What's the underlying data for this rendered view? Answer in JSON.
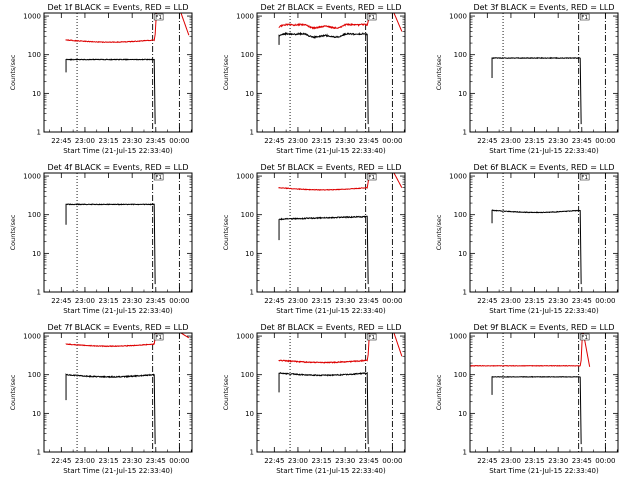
{
  "figure": {
    "ylabel": "Counts/sec",
    "xlabel": "Start Time (21-Jul-15 22:33:40)",
    "x_ticks": [
      "22:45",
      "23:00",
      "23:15",
      "23:30",
      "23:45",
      "00:00"
    ],
    "y_ticks": [
      "1",
      "10",
      "100",
      "1000"
    ]
  },
  "colors": {
    "events": "#000000",
    "lld": "#dd0000",
    "axes": "#000000"
  },
  "chart_data": [
    {
      "type": "line",
      "title": "Det 1f BLACK = Events, RED = LLD",
      "flag": "F1",
      "xlim_minutes": [
        0,
        94
      ],
      "ylim": [
        1,
        1200
      ],
      "yscale": "log",
      "markers_minutes": {
        "dotted": [
          21
        ],
        "dashdot": [
          69,
          86
        ]
      },
      "series": [
        {
          "role": "events",
          "start": 14,
          "end": 70,
          "pre_start": 35,
          "level": 75,
          "shape": "flat",
          "noise": 0.02,
          "exit": "drop",
          "exit_to": 1.6,
          "exit_span": 0.6
        },
        {
          "role": "lld",
          "start": 14,
          "end": 70,
          "pre_start": 250,
          "level": 240,
          "shape": "dip",
          "noise": 0.02,
          "exit": "spike",
          "exit_to": 1200,
          "after": {
            "from": 87,
            "to": 92,
            "start": 1200,
            "end": 320
          }
        }
      ]
    },
    {
      "type": "line",
      "title": "Det 2f BLACK = Events, RED = LLD",
      "flag": "F1",
      "xlim_minutes": [
        0,
        94
      ],
      "ylim": [
        1,
        1200
      ],
      "yscale": "log",
      "markers_minutes": {
        "dotted": [
          21
        ],
        "dashdot": [
          69,
          86
        ]
      },
      "series": [
        {
          "role": "events",
          "start": 14,
          "end": 70,
          "pre_start": 180,
          "level": 300,
          "shape": "bumps",
          "noise": 0.04,
          "exit": "drop",
          "exit_to": 1.6,
          "exit_span": 0.6
        },
        {
          "role": "lld",
          "start": 14,
          "end": 70,
          "pre_start": 500,
          "level": 520,
          "shape": "bumps",
          "noise": 0.04,
          "exit": "spike",
          "exit_to": 1200,
          "after": {
            "from": 87,
            "to": 92,
            "start": 1200,
            "end": 400
          }
        }
      ]
    },
    {
      "type": "line",
      "title": "Det 3f BLACK = Events, RED = LLD",
      "flag": "F1",
      "xlim_minutes": [
        0,
        94
      ],
      "ylim": [
        1,
        1200
      ],
      "yscale": "log",
      "markers_minutes": {
        "dotted": [
          21
        ],
        "dashdot": [
          69,
          86
        ]
      },
      "series": [
        {
          "role": "events",
          "start": 14,
          "end": 70,
          "pre_start": 25,
          "level": 82,
          "shape": "flat",
          "noise": 0.02,
          "exit": "drop",
          "exit_to": 1.6,
          "exit_span": 0.6
        }
      ]
    },
    {
      "type": "line",
      "title": "Det 4f BLACK = Events, RED = LLD",
      "flag": "F1",
      "xlim_minutes": [
        0,
        94
      ],
      "ylim": [
        1,
        1200
      ],
      "yscale": "log",
      "markers_minutes": {
        "dotted": [
          21
        ],
        "dashdot": [
          69,
          86
        ]
      },
      "series": [
        {
          "role": "events",
          "start": 14,
          "end": 70,
          "pre_start": 55,
          "level": 185,
          "shape": "flat",
          "noise": 0.02,
          "exit": "drop",
          "exit_to": 1.6,
          "exit_span": 0.6
        }
      ]
    },
    {
      "type": "line",
      "title": "Det 5f BLACK = Events, RED = LLD",
      "flag": "F1",
      "xlim_minutes": [
        0,
        94
      ],
      "ylim": [
        1,
        1200
      ],
      "yscale": "log",
      "markers_minutes": {
        "dotted": [
          21
        ],
        "dashdot": [
          69,
          86
        ]
      },
      "series": [
        {
          "role": "events",
          "start": 14,
          "end": 70,
          "pre_start": 22,
          "level": 85,
          "shape": "rise",
          "noise": 0.03,
          "exit": "drop",
          "exit_to": 1.6,
          "exit_span": 0.6
        },
        {
          "role": "lld",
          "start": 14,
          "end": 70,
          "pre_start": 520,
          "level": 500,
          "shape": "dip",
          "noise": 0.02,
          "exit": "spike",
          "exit_to": 1200,
          "after": {
            "from": 87,
            "to": 92,
            "start": 1200,
            "end": 500
          }
        }
      ]
    },
    {
      "type": "line",
      "title": "Det 6f BLACK = Events, RED = LLD",
      "flag": "F1",
      "xlim_minutes": [
        0,
        94
      ],
      "ylim": [
        1,
        1200
      ],
      "yscale": "log",
      "markers_minutes": {
        "dotted": [
          21
        ],
        "dashdot": [
          69,
          86
        ]
      },
      "series": [
        {
          "role": "events",
          "start": 14,
          "end": 70,
          "pre_start": 60,
          "level": 130,
          "shape": "dip",
          "noise": 0.02,
          "exit": "drop",
          "exit_to": 1.6,
          "exit_span": 0.6
        }
      ]
    },
    {
      "type": "line",
      "title": "Det 7f BLACK = Events, RED = LLD",
      "flag": "F1",
      "xlim_minutes": [
        0,
        94
      ],
      "ylim": [
        1,
        1200
      ],
      "yscale": "log",
      "markers_minutes": {
        "dotted": [
          21
        ],
        "dashdot": [
          69,
          86
        ]
      },
      "series": [
        {
          "role": "events",
          "start": 14,
          "end": 70,
          "pre_start": 22,
          "level": 100,
          "shape": "dip",
          "noise": 0.03,
          "exit": "drop",
          "exit_to": 1.6,
          "exit_span": 0.6
        },
        {
          "role": "lld",
          "start": 14,
          "end": 70,
          "pre_start": 640,
          "level": 620,
          "shape": "dip",
          "noise": 0.02,
          "exit": "spike",
          "exit_to": 1200,
          "after": {
            "from": 87,
            "to": 92,
            "start": 1200,
            "end": 900
          }
        }
      ]
    },
    {
      "type": "line",
      "title": "Det 8f BLACK = Events, RED = LLD",
      "flag": "F1",
      "xlim_minutes": [
        0,
        94
      ],
      "ylim": [
        1,
        1200
      ],
      "yscale": "log",
      "markers_minutes": {
        "dotted": [
          21
        ],
        "dashdot": [
          69,
          86
        ]
      },
      "series": [
        {
          "role": "events",
          "start": 14,
          "end": 70,
          "pre_start": 35,
          "level": 110,
          "shape": "dip",
          "noise": 0.03,
          "exit": "drop",
          "exit_to": 1.6,
          "exit_span": 0.6
        },
        {
          "role": "lld",
          "start": 14,
          "end": 70,
          "pre_start": 240,
          "level": 235,
          "shape": "dip",
          "noise": 0.03,
          "exit": "spike",
          "exit_to": 1200,
          "after": {
            "from": 87,
            "to": 92,
            "start": 1200,
            "end": 300
          }
        }
      ]
    },
    {
      "type": "line",
      "title": "Det 9f BLACK = Events, RED = LLD",
      "flag": "F1",
      "xlim_minutes": [
        0,
        94
      ],
      "ylim": [
        1,
        1200
      ],
      "yscale": "log",
      "markers_minutes": {
        "dotted": [
          21
        ],
        "dashdot": [
          69,
          86
        ]
      },
      "series": [
        {
          "role": "events",
          "start": 14,
          "end": 70,
          "pre_start": 30,
          "level": 88,
          "shape": "flat",
          "noise": 0.015,
          "exit": "drop",
          "exit_to": 1.6,
          "exit_span": 0.6
        },
        {
          "role": "lld",
          "start": 0,
          "end": 70,
          "pre_start": 170,
          "level": 170,
          "shape": "flat",
          "noise": 0.015,
          "exit": "spike",
          "exit_to": 1200,
          "after": {
            "from": 72,
            "to": 76,
            "start": 1200,
            "end": 160
          }
        }
      ]
    }
  ]
}
